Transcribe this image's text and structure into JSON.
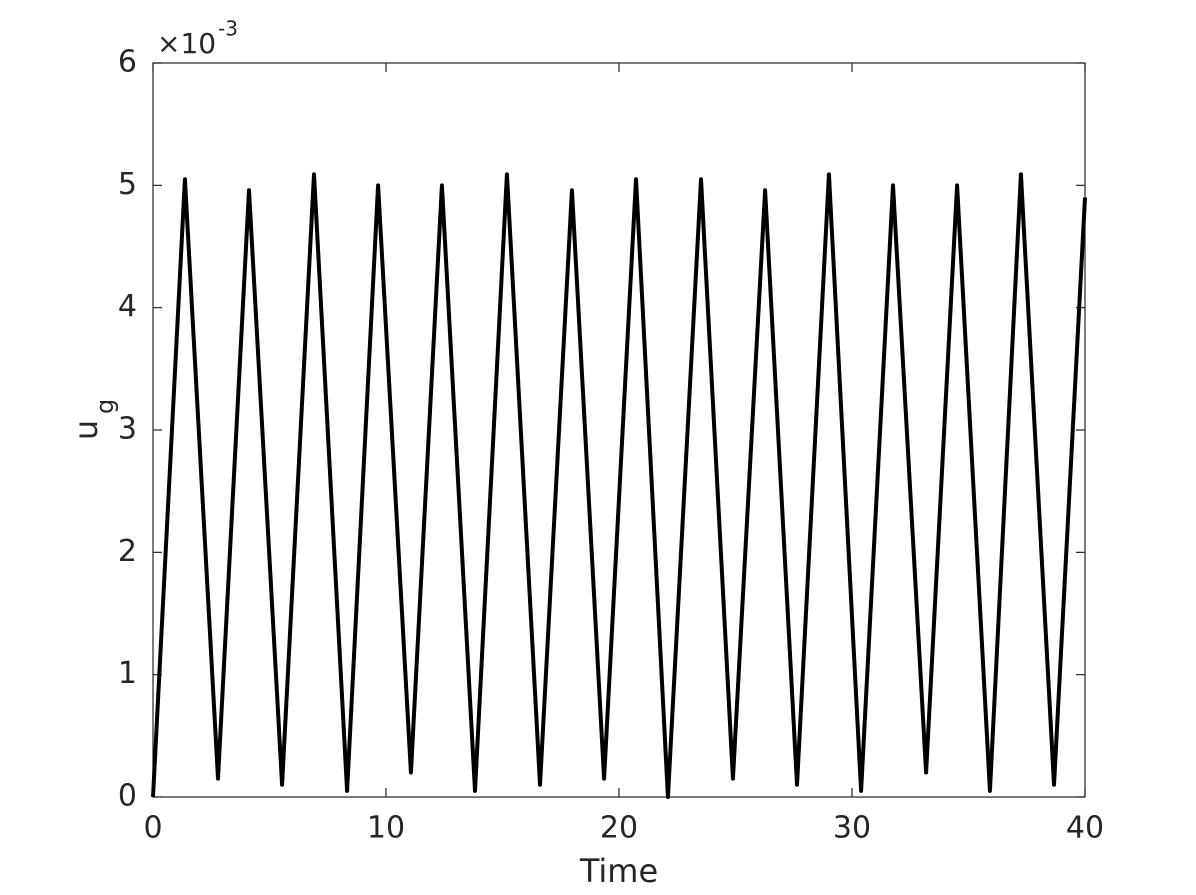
{
  "chart_data": {
    "type": "line",
    "xlabel": "Time",
    "ylabel": "u",
    "ylabel_subscript": "g",
    "y_multiplier": "×10",
    "y_multiplier_exponent": "-3",
    "x": [
      0,
      1.37,
      2.79,
      4.12,
      5.54,
      6.91,
      8.33,
      9.66,
      11.07,
      12.4,
      13.82,
      15.19,
      16.61,
      17.98,
      19.36,
      20.73,
      22.1,
      23.52,
      24.89,
      26.27,
      27.64,
      29.01,
      30.39,
      31.76,
      33.18,
      34.51,
      35.92,
      37.25,
      38.67,
      40
    ],
    "series": [
      {
        "color": "#000000",
        "values": [
          0,
          0.00505,
          0.00015,
          0.00496,
          0.0001,
          0.00509,
          5e-05,
          0.005,
          0.0002,
          0.005,
          5e-05,
          0.00509,
          0.0001,
          0.00496,
          0.00015,
          0.00505,
          0,
          0.00505,
          0.00015,
          0.00496,
          0.0001,
          0.00509,
          5e-05,
          0.005,
          0.0002,
          0.005,
          5e-05,
          0.00509,
          0.0001,
          0.0049
        ]
      }
    ],
    "xlim": [
      0,
      40
    ],
    "xticks": [
      0,
      10,
      20,
      30,
      40
    ],
    "ylim": [
      0,
      0.006
    ],
    "yticks": [
      0,
      {
        "value": 0.001,
        "label": "1"
      },
      {
        "value": 0.002,
        "label": "2"
      },
      {
        "value": 0.003,
        "label": "3"
      },
      {
        "value": 0.004,
        "label": "4"
      },
      {
        "value": 0.005,
        "label": "5"
      },
      {
        "value": 0.006,
        "label": "6"
      }
    ],
    "grid": false
  }
}
